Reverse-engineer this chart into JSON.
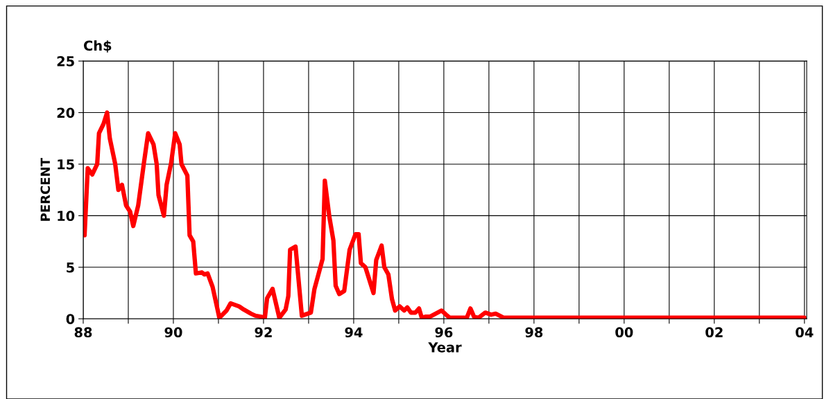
{
  "chart_data": {
    "type": "line",
    "xlabel": "Year",
    "ylabel": "PERCENT",
    "annotations": [
      "Ch$"
    ],
    "x": [
      1988.03,
      1988.1,
      1988.2,
      1988.31,
      1988.35,
      1988.45,
      1988.53,
      1988.59,
      1988.71,
      1988.78,
      1988.86,
      1988.95,
      1989.04,
      1989.11,
      1989.22,
      1989.34,
      1989.44,
      1989.56,
      1989.63,
      1989.67,
      1989.79,
      1989.85,
      1989.95,
      1990.04,
      1990.14,
      1990.18,
      1990.31,
      1990.36,
      1990.44,
      1990.5,
      1990.63,
      1990.69,
      1990.76,
      1990.87,
      1991.02,
      1991.18,
      1991.27,
      1991.46,
      1991.56,
      1991.72,
      1991.82,
      1991.95,
      1992.03,
      1992.08,
      1992.2,
      1992.35,
      1992.49,
      1992.55,
      1992.59,
      1992.71,
      1992.85,
      1993.05,
      1993.13,
      1993.23,
      1993.31,
      1993.36,
      1993.46,
      1993.55,
      1993.6,
      1993.68,
      1993.79,
      1993.91,
      1994.04,
      1994.11,
      1994.16,
      1994.26,
      1994.44,
      1994.5,
      1994.62,
      1994.68,
      1994.77,
      1994.85,
      1994.92,
      1995.02,
      1995.12,
      1995.19,
      1995.27,
      1995.37,
      1995.45,
      1995.51,
      1995.59,
      1995.69,
      1995.95,
      1996.05,
      1996.13,
      1996.51,
      1996.59,
      1996.67,
      1996.77,
      1996.92,
      1997.05,
      1997.15,
      1997.33,
      2004.0
    ],
    "series": [
      {
        "color": "#ff0000",
        "values": [
          8.1,
          14.6,
          14.0,
          15.0,
          18.0,
          18.9,
          20.0,
          17.5,
          15.0,
          12.5,
          13.0,
          11.0,
          10.4,
          9.0,
          11.0,
          14.9,
          18.0,
          16.9,
          15.0,
          12.0,
          10.0,
          13.0,
          15.1,
          18.0,
          16.9,
          15.0,
          13.9,
          8.1,
          7.5,
          4.4,
          4.5,
          4.3,
          4.4,
          3.1,
          0.1,
          0.8,
          1.5,
          1.2,
          0.9,
          0.5,
          0.3,
          0.2,
          0.1,
          2.0,
          2.9,
          0.1,
          0.9,
          2.2,
          6.7,
          7.0,
          0.3,
          0.6,
          2.9,
          4.5,
          5.8,
          13.4,
          9.9,
          7.6,
          3.2,
          2.4,
          2.7,
          6.7,
          8.2,
          8.2,
          5.4,
          5.0,
          2.5,
          5.7,
          7.1,
          5.0,
          4.3,
          1.9,
          0.8,
          1.2,
          0.8,
          1.1,
          0.6,
          0.6,
          1.0,
          0.1,
          0.2,
          0.2,
          0.8,
          0.4,
          0.1,
          0.1,
          1.0,
          0.2,
          0.1,
          0.6,
          0.4,
          0.5,
          0.1,
          0.1
        ]
      }
    ],
    "xlim": [
      1988,
      2004.05
    ],
    "xticks": [
      {
        "value": 1988,
        "label": "88"
      },
      {
        "value": 1989,
        "label": null
      },
      {
        "value": 1990,
        "label": "90"
      },
      {
        "value": 1991,
        "label": null
      },
      {
        "value": 1992,
        "label": "92"
      },
      {
        "value": 1993,
        "label": null
      },
      {
        "value": 1994,
        "label": "94"
      },
      {
        "value": 1995,
        "label": null
      },
      {
        "value": 1996,
        "label": "96"
      },
      {
        "value": 1997,
        "label": null
      },
      {
        "value": 1998,
        "label": "98"
      },
      {
        "value": 1999,
        "label": null
      },
      {
        "value": 2000,
        "label": "00"
      },
      {
        "value": 2001,
        "label": null
      },
      {
        "value": 2002,
        "label": "02"
      },
      {
        "value": 2003,
        "label": null
      },
      {
        "value": 2004,
        "label": "04"
      }
    ],
    "ylim": [
      0,
      25
    ],
    "yticks": [
      0,
      5,
      10,
      15,
      20,
      25
    ],
    "grid": true,
    "legend": false,
    "marker": "none",
    "line_style": "solid"
  }
}
